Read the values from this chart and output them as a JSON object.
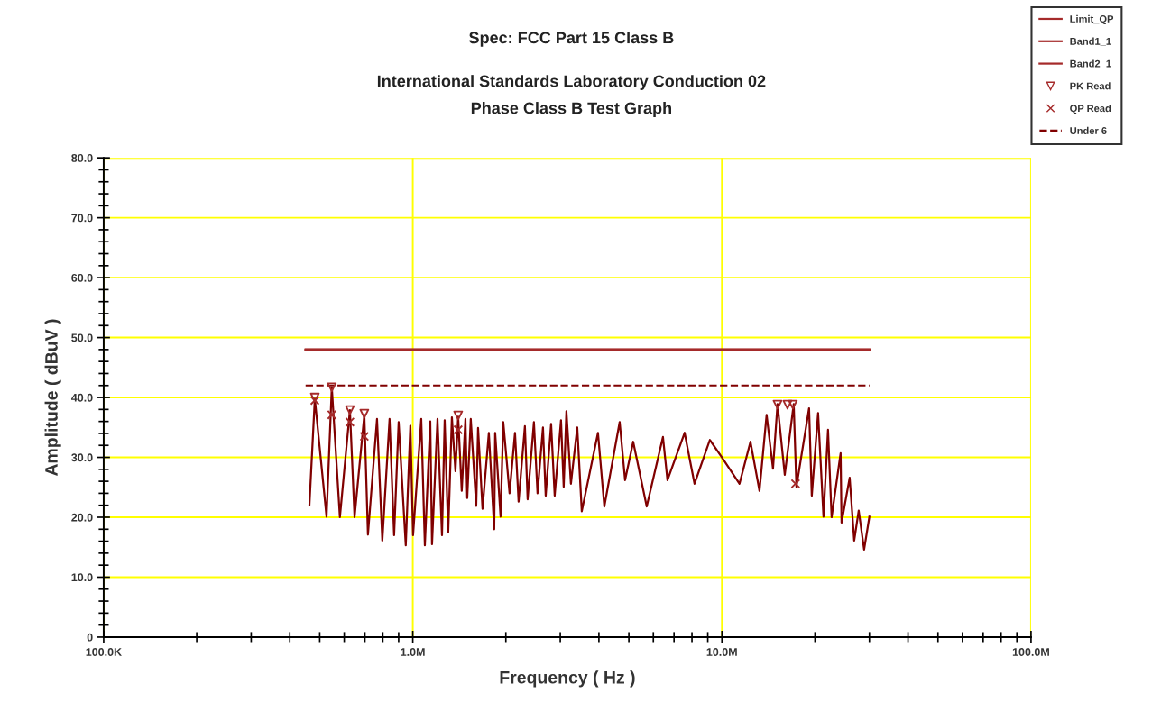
{
  "chart_data": {
    "type": "line",
    "title": "Spec: FCC Part 15 Class B",
    "subtitle": "International Standards Laboratory Conduction 02\nPhase Class B Test Graph",
    "xlabel": "Frequency ( Hz )",
    "ylabel": "Amplitude ( dBuV )",
    "log": "x",
    "grid": true,
    "legend": "top right",
    "xlim": [
      100000,
      100000000
    ],
    "xticks": [
      {
        "value": 100000,
        "label": "100.0K"
      },
      {
        "value": 1000000,
        "label": "1.0M"
      },
      {
        "value": 10000000,
        "label": "10.0M"
      },
      {
        "value": 100000000,
        "label": "100.0M"
      }
    ],
    "ylim": [
      0,
      80
    ],
    "yticks": [
      0,
      {
        "value": 10,
        "label": "10.0"
      },
      {
        "value": 20,
        "label": "20.0"
      },
      {
        "value": 30,
        "label": "30.0"
      },
      {
        "value": 40,
        "label": "40.0"
      },
      {
        "value": 50,
        "label": "50.0"
      },
      {
        "value": 60,
        "label": "60.0"
      },
      {
        "value": 70,
        "label": "70.0"
      },
      {
        "value": 80,
        "label": "80.0"
      }
    ],
    "series": [
      {
        "color": "#800000",
        "x": [
          463000,
          482000,
          526000,
          547000,
          581000,
          626000,
          648000,
          697000,
          716000,
          766000,
          797000,
          841000,
          870000,
          900000,
          949000,
          982000,
          1002000,
          1065000,
          1094000,
          1139000,
          1154000,
          1202000,
          1243000,
          1268000,
          1302000,
          1338000,
          1374000,
          1402000,
          1440000,
          1480000,
          1500000,
          1540000,
          1604000,
          1626000,
          1681000,
          1762000,
          1834000,
          1847000,
          1923000,
          1962000,
          2056000,
          2141000,
          2199000,
          2305000,
          2352000,
          2465000,
          2532000,
          2637000,
          2691000,
          2802000,
          2877000,
          3016000,
          3077000,
          3140000,
          3247000,
          3404000,
          3521000,
          3972000,
          4165000,
          4669000,
          4861000,
          5164000,
          5711000,
          6445000,
          6665000,
          7574000,
          8153000,
          9140000,
          9970000,
          11400000,
          12370000,
          13230000,
          13950000,
          14630000,
          15130000,
          15970000,
          17070000,
          17420000,
          19140000,
          19530000,
          20470000,
          21310000,
          22040000,
          22640000,
          24210000,
          24380000,
          25900000,
          26790000,
          27700000,
          28840000,
          30000000
        ],
        "values": [
          22,
          39.8,
          20.1,
          41.7,
          20,
          37.9,
          20,
          37.1,
          17.1,
          36.4,
          16.1,
          36.4,
          17,
          35.9,
          15.3,
          35.3,
          17,
          36.4,
          15.3,
          36,
          15.5,
          36.4,
          17,
          36.2,
          17.5,
          36.7,
          27.7,
          36.8,
          24.4,
          36.4,
          23.2,
          36.4,
          21.9,
          34.9,
          21.4,
          34.1,
          18,
          34.1,
          20.1,
          35.9,
          24,
          34.1,
          22.6,
          35.2,
          23,
          35.9,
          24,
          35,
          23.6,
          35.6,
          23.6,
          36.2,
          25.1,
          37.7,
          25.6,
          35,
          21,
          34.1,
          21.8,
          35.9,
          26.2,
          32.6,
          21.8,
          33.4,
          26.2,
          34.1,
          25.6,
          32.9,
          30.1,
          25.6,
          32.6,
          24.4,
          37.1,
          28.1,
          38.9,
          27.1,
          38.9,
          25.1,
          38.2,
          23.6,
          37.4,
          20.1,
          34.6,
          20,
          30.7,
          19.1,
          26.6,
          16.1,
          21.1,
          14.6,
          20.1
        ]
      },
      {
        "type": "line",
        "name": "Limit_QP",
        "color": "#a52a2a",
        "x": [
          450000,
          30000000
        ],
        "values": [
          48,
          48
        ]
      },
      {
        "type": "line",
        "name": "Band1_1",
        "color": "#a52a2a",
        "x": [
          450000,
          30000000
        ],
        "values": [
          48,
          48
        ]
      },
      {
        "type": "line",
        "name": "Band2_1",
        "color": "#a52a2a",
        "x": [
          450000,
          30000000
        ],
        "values": [
          48,
          48
        ]
      },
      {
        "type": "scatter",
        "name": "PK Read",
        "color": "#a52a2a",
        "marker": "triangle",
        "x": [
          482000,
          547000,
          626000,
          697000,
          1402000,
          15130000,
          16290000,
          16960000
        ],
        "values": [
          40.0,
          41.7,
          37.9,
          37.3,
          37.0,
          38.8,
          38.8,
          38.8
        ]
      },
      {
        "type": "scatter",
        "name": "QP Read",
        "color": "#a52a2a",
        "marker": "cross",
        "x": [
          482000,
          547000,
          626000,
          697000,
          1402000,
          17300000
        ],
        "values": [
          39.5,
          37.1,
          35.9,
          33.5,
          34.6,
          25.6
        ]
      },
      {
        "type": "line",
        "name": "Under 6",
        "color": "#800000",
        "line_style": "dashed",
        "x": [
          450000,
          30000000
        ],
        "values": [
          42,
          42
        ]
      }
    ]
  }
}
